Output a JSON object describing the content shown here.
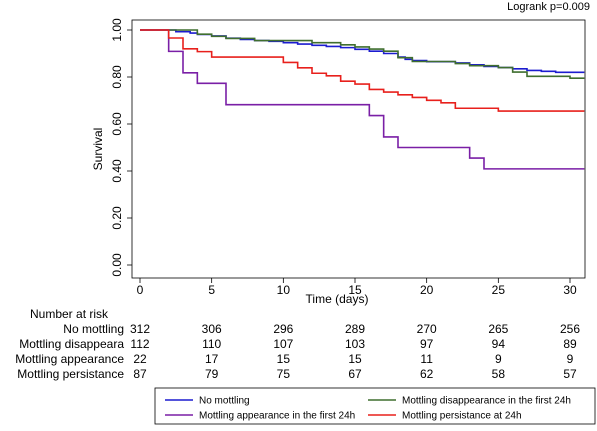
{
  "chart_data": {
    "type": "line",
    "subtype": "kaplan-meier-step",
    "annotation": "Logrank p=0.009",
    "xlabel": "Time (days)",
    "ylabel": "Survival",
    "xlim": [
      0,
      31
    ],
    "ylim": [
      0,
      1
    ],
    "x_ticks": [
      0,
      5,
      10,
      15,
      20,
      25,
      30
    ],
    "y_ticks": [
      0,
      0.2,
      0.4,
      0.6,
      0.8,
      1.0
    ],
    "y_tick_labels": [
      "0.00",
      "0.20",
      "0.40",
      "0.60",
      "0.80",
      "1.00"
    ],
    "grid": false,
    "legend_position": "bottom",
    "series": [
      {
        "name": "No mottling",
        "color": "#1c1ccf",
        "steps": [
          [
            0,
            1.0
          ],
          [
            2,
            1.0
          ],
          [
            2.5,
            0.993
          ],
          [
            3.5,
            0.987
          ],
          [
            4,
            0.981
          ],
          [
            5,
            0.975
          ],
          [
            6,
            0.965
          ],
          [
            7,
            0.96
          ],
          [
            8,
            0.955
          ],
          [
            9,
            0.952
          ],
          [
            10,
            0.946
          ],
          [
            11,
            0.94
          ],
          [
            12,
            0.935
          ],
          [
            13,
            0.93
          ],
          [
            14,
            0.925
          ],
          [
            15,
            0.918
          ],
          [
            16,
            0.91
          ],
          [
            17,
            0.9
          ],
          [
            18,
            0.885
          ],
          [
            18.5,
            0.875
          ],
          [
            19,
            0.87
          ],
          [
            20,
            0.865
          ],
          [
            22,
            0.86
          ],
          [
            23,
            0.852
          ],
          [
            24,
            0.845
          ],
          [
            25,
            0.84
          ],
          [
            26,
            0.835
          ],
          [
            27,
            0.828
          ],
          [
            28,
            0.824
          ],
          [
            29,
            0.82
          ],
          [
            31,
            0.82
          ]
        ]
      },
      {
        "name": "Mottling disappearance in the first 24h",
        "color": "#3f6e2e",
        "steps": [
          [
            0,
            1.0
          ],
          [
            2,
            1.0
          ],
          [
            4,
            0.982
          ],
          [
            5,
            0.973
          ],
          [
            6,
            0.964
          ],
          [
            8,
            0.955
          ],
          [
            12,
            0.946
          ],
          [
            14,
            0.937
          ],
          [
            15,
            0.928
          ],
          [
            16,
            0.919
          ],
          [
            17,
            0.91
          ],
          [
            18,
            0.882
          ],
          [
            19,
            0.866
          ],
          [
            22,
            0.857
          ],
          [
            23,
            0.848
          ],
          [
            25,
            0.84
          ],
          [
            26,
            0.821
          ],
          [
            27,
            0.803
          ],
          [
            30,
            0.795
          ],
          [
            31,
            0.795
          ]
        ]
      },
      {
        "name": "Mottling appearance in the first 24h",
        "color": "#7a1fa6",
        "steps": [
          [
            0,
            1.0
          ],
          [
            2,
            1.0
          ],
          [
            2,
            0.909
          ],
          [
            3,
            0.818
          ],
          [
            4,
            0.773
          ],
          [
            6,
            0.682
          ],
          [
            16,
            0.636
          ],
          [
            17,
            0.545
          ],
          [
            18,
            0.5
          ],
          [
            23,
            0.455
          ],
          [
            24,
            0.409
          ],
          [
            31,
            0.409
          ]
        ]
      },
      {
        "name": "Mottling persistance at 24h",
        "color": "#e8201c",
        "steps": [
          [
            0,
            1.0
          ],
          [
            2,
            1.0
          ],
          [
            2,
            0.966
          ],
          [
            3,
            0.92
          ],
          [
            4,
            0.908
          ],
          [
            5,
            0.885
          ],
          [
            10,
            0.862
          ],
          [
            11,
            0.839
          ],
          [
            12,
            0.816
          ],
          [
            13,
            0.805
          ],
          [
            14,
            0.782
          ],
          [
            15,
            0.77
          ],
          [
            16,
            0.747
          ],
          [
            17,
            0.736
          ],
          [
            18,
            0.724
          ],
          [
            19,
            0.713
          ],
          [
            20,
            0.701
          ],
          [
            21,
            0.69
          ],
          [
            22,
            0.667
          ],
          [
            25,
            0.655
          ],
          [
            31,
            0.655
          ]
        ]
      }
    ],
    "risk_table": {
      "title": "Number at risk",
      "timepoints": [
        0,
        5,
        10,
        15,
        20,
        25,
        30
      ],
      "rows": [
        {
          "label": "No mottling",
          "values": [
            312,
            306,
            296,
            289,
            270,
            265,
            256
          ]
        },
        {
          "label": "Mottling disappeara",
          "values": [
            112,
            110,
            107,
            103,
            97,
            94,
            89
          ]
        },
        {
          "label": "Mottling appearance",
          "values": [
            22,
            17,
            15,
            15,
            11,
            9,
            9
          ]
        },
        {
          "label": "Mottling persistance",
          "values": [
            87,
            79,
            75,
            67,
            62,
            58,
            57
          ]
        }
      ]
    }
  }
}
